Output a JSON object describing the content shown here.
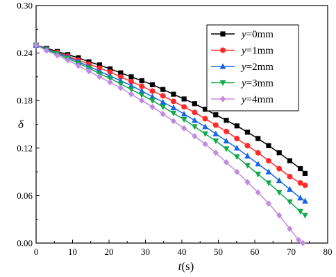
{
  "chart_data": {
    "type": "line",
    "xlabel_var": "t",
    "xlabel_unit": "(s)",
    "ylabel": "δ",
    "xlim": [
      0,
      80
    ],
    "ylim": [
      0.0,
      0.3
    ],
    "x_ticks": [
      "0",
      "10",
      "20",
      "30",
      "40",
      "50",
      "60",
      "70",
      "80"
    ],
    "y_ticks": [
      "0.00",
      "0.06",
      "0.12",
      "0.18",
      "0.24",
      "0.30"
    ],
    "grid": false,
    "legend_position": "top-right",
    "series": [
      {
        "name_var": "y",
        "name_rest": "=0mm",
        "color": "#000000",
        "marker": "square",
        "x": [
          0,
          2.9,
          5.8,
          8.7,
          11.6,
          14.5,
          17.4,
          20.3,
          23.2,
          26.1,
          29,
          31.9,
          34.8,
          37.7,
          40.6,
          43.5,
          46.4,
          49.3,
          52.2,
          55.1,
          58,
          60.9,
          63.8,
          66.7,
          69.6,
          72.5,
          73.8
        ],
        "y": [
          0.25,
          0.246,
          0.242,
          0.238,
          0.234,
          0.229,
          0.225,
          0.22,
          0.215,
          0.21,
          0.205,
          0.2,
          0.194,
          0.188,
          0.182,
          0.176,
          0.169,
          0.162,
          0.155,
          0.148,
          0.14,
          0.132,
          0.123,
          0.114,
          0.104,
          0.094,
          0.088
        ]
      },
      {
        "name_var": "y",
        "name_rest": "=1mm",
        "color": "#ff2b2b",
        "marker": "circle",
        "x": [
          0,
          2.9,
          5.8,
          8.7,
          11.6,
          14.5,
          17.4,
          20.3,
          23.2,
          26.1,
          29,
          31.9,
          34.8,
          37.7,
          40.6,
          43.5,
          46.4,
          49.3,
          52.2,
          55.1,
          58,
          60.9,
          63.8,
          66.7,
          69.6,
          72.5,
          73.8
        ],
        "y": [
          0.25,
          0.245,
          0.241,
          0.236,
          0.231,
          0.226,
          0.221,
          0.216,
          0.21,
          0.204,
          0.198,
          0.192,
          0.186,
          0.179,
          0.172,
          0.165,
          0.157,
          0.149,
          0.141,
          0.132,
          0.123,
          0.114,
          0.104,
          0.094,
          0.084,
          0.076,
          0.073
        ]
      },
      {
        "name_var": "y",
        "name_rest": "=2mm",
        "color": "#1565e6",
        "marker": "triangle-up",
        "x": [
          0,
          2.9,
          5.8,
          8.7,
          11.6,
          14.5,
          17.4,
          20.3,
          23.2,
          26.1,
          29,
          31.9,
          34.8,
          37.7,
          40.6,
          43.5,
          46.4,
          49.3,
          52.2,
          55.1,
          58,
          60.9,
          63.8,
          66.7,
          69.6,
          72.5,
          73.8
        ],
        "y": [
          0.25,
          0.245,
          0.24,
          0.235,
          0.229,
          0.223,
          0.217,
          0.211,
          0.205,
          0.199,
          0.192,
          0.185,
          0.178,
          0.171,
          0.163,
          0.155,
          0.147,
          0.138,
          0.129,
          0.12,
          0.11,
          0.1,
          0.09,
          0.079,
          0.068,
          0.057,
          0.053
        ]
      },
      {
        "name_var": "y",
        "name_rest": "=3mm",
        "color": "#11a84c",
        "marker": "triangle-down",
        "x": [
          0,
          2.9,
          5.8,
          8.7,
          11.6,
          14.5,
          17.4,
          20.3,
          23.2,
          26.1,
          29,
          31.9,
          34.8,
          37.7,
          40.6,
          43.5,
          46.4,
          49.3,
          52.2,
          55.1,
          58,
          60.9,
          63.8,
          66.7,
          69.6,
          72.5,
          73.8
        ],
        "y": [
          0.25,
          0.244,
          0.239,
          0.233,
          0.227,
          0.221,
          0.214,
          0.208,
          0.201,
          0.194,
          0.187,
          0.18,
          0.172,
          0.164,
          0.156,
          0.147,
          0.138,
          0.129,
          0.119,
          0.109,
          0.098,
          0.087,
          0.076,
          0.064,
          0.052,
          0.04,
          0.035
        ]
      },
      {
        "name_var": "y",
        "name_rest": "=4mm",
        "color": "#c28be0",
        "marker": "diamond",
        "x": [
          0,
          2.9,
          5.8,
          8.7,
          11.6,
          14.5,
          17.4,
          20.3,
          23.2,
          26.1,
          29,
          31.9,
          34.8,
          37.7,
          40.6,
          43.5,
          46.4,
          49.3,
          52.2,
          55.1,
          58,
          60.9,
          63.8,
          66.7,
          69.6,
          72.0,
          73.2
        ],
        "y": [
          0.25,
          0.243,
          0.237,
          0.231,
          0.224,
          0.217,
          0.21,
          0.203,
          0.196,
          0.188,
          0.18,
          0.172,
          0.163,
          0.154,
          0.145,
          0.135,
          0.125,
          0.114,
          0.102,
          0.09,
          0.077,
          0.064,
          0.05,
          0.035,
          0.018,
          0.004,
          0.0
        ]
      }
    ]
  }
}
